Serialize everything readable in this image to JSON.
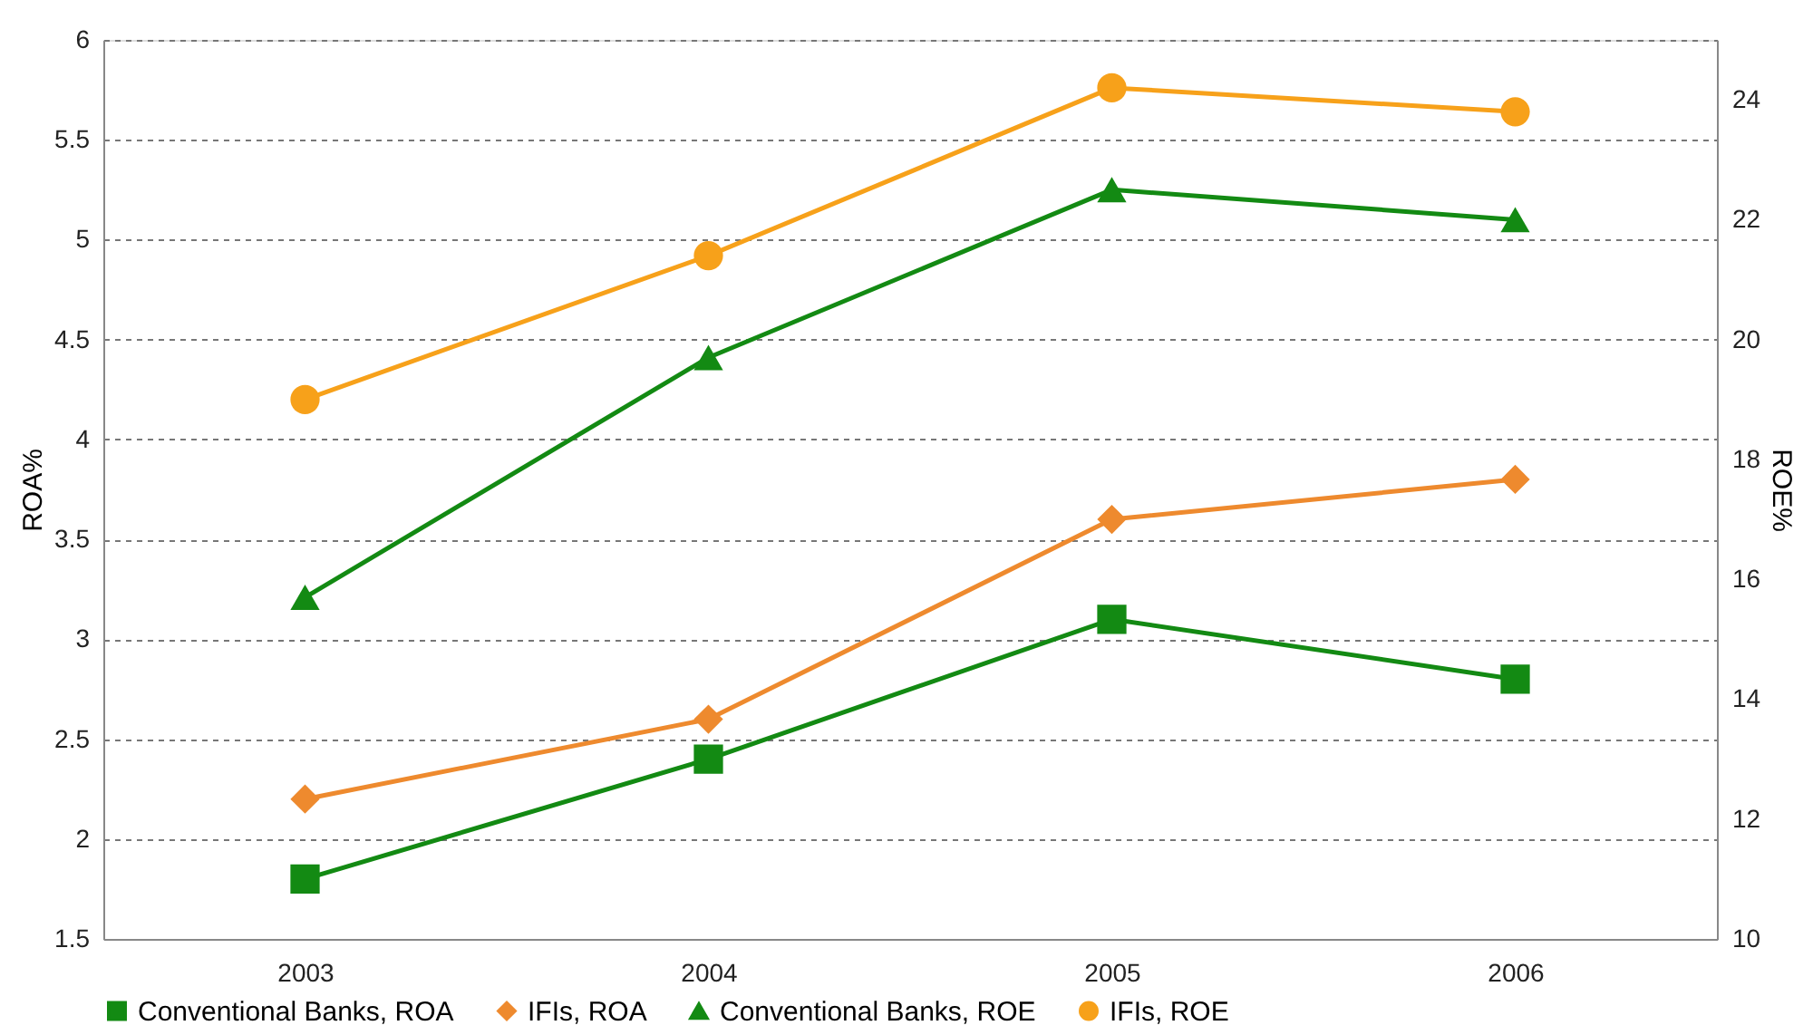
{
  "chart_data": {
    "type": "line",
    "ylabel": "ROA%",
    "y2label": "ROE%",
    "categories": [
      "2003",
      "2004",
      "2005",
      "2006"
    ],
    "series": [
      {
        "name": "Conventional Banks, ROA",
        "color": "#138a13",
        "marker": "square",
        "values": [
          1.8,
          2.4,
          3.1,
          2.8
        ]
      },
      {
        "name": "IFIs, ROA",
        "color": "#ee8a2e",
        "marker": "diamond",
        "values": [
          2.2,
          2.6,
          3.6,
          3.8
        ]
      },
      {
        "name": "Conventional Banks, ROE",
        "color": "#138a13",
        "marker": "triangle",
        "axis": "y2",
        "values": [
          15.7,
          19.7,
          22.5,
          22.0
        ]
      },
      {
        "name": "IFIs, ROE",
        "color": "#f7a11a",
        "marker": "circle",
        "axis": "y2",
        "values": [
          19.0,
          21.4,
          24.2,
          23.8
        ]
      }
    ],
    "ylim": [
      1.5,
      6
    ],
    "yticks": [
      1.5,
      2,
      2.5,
      3,
      3.5,
      4,
      4.5,
      5,
      5.5,
      6
    ],
    "y2lim": [
      10,
      25
    ],
    "y2ticks": [
      10,
      12,
      14,
      16,
      18,
      20,
      22,
      24
    ],
    "grid": "y",
    "legend": "bottom"
  }
}
